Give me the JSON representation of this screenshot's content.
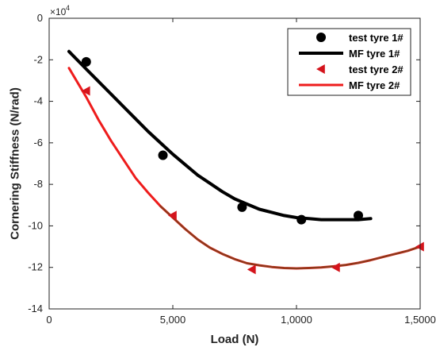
{
  "chart_data": {
    "type": "line",
    "xlabel": "Load (N)",
    "ylabel": "Cornering Stiffness (N/rad)",
    "xlim": [
      0,
      15000
    ],
    "ylim": [
      -14,
      0
    ],
    "y_multiplier_label": "×10",
    "y_multiplier_exponent": "4",
    "x_ticks": [
      0,
      5000,
      10000,
      15000
    ],
    "x_tick_labels": [
      "0",
      "5,000",
      "1,0000",
      "1,5000"
    ],
    "y_ticks": [
      0,
      -2,
      -4,
      -6,
      -8,
      -10,
      -12,
      -14
    ],
    "y_tick_labels": [
      "0",
      "-2",
      "-4",
      "-6",
      "-8",
      "-10",
      "-12",
      "-14"
    ],
    "grid": false,
    "legend_position": "top-right",
    "series": [
      {
        "name": "test tyre 1#",
        "kind": "scatter",
        "marker": "circle",
        "color": "#000000",
        "x": [
          1500,
          4600,
          7800,
          10200,
          12500
        ],
        "y": [
          -2.1,
          -6.6,
          -9.1,
          -9.7,
          -9.5
        ]
      },
      {
        "name": "MF tyre 1#",
        "kind": "line",
        "color": "#000000",
        "x": [
          800,
          1500,
          2000,
          2500,
          3000,
          3500,
          4000,
          4500,
          5000,
          5500,
          6000,
          6500,
          7000,
          7500,
          8000,
          8500,
          9000,
          9500,
          10000,
          10500,
          11000,
          11500,
          12000,
          12500,
          13000
        ],
        "y": [
          -1.6,
          -2.45,
          -3.05,
          -3.65,
          -4.25,
          -4.85,
          -5.45,
          -6.0,
          -6.55,
          -7.05,
          -7.55,
          -7.95,
          -8.35,
          -8.7,
          -8.95,
          -9.2,
          -9.35,
          -9.5,
          -9.6,
          -9.65,
          -9.7,
          -9.7,
          -9.7,
          -9.7,
          -9.65
        ]
      },
      {
        "name": "test tyre 2#",
        "kind": "scatter",
        "marker": "triangle-left",
        "color": "#d4141c",
        "x": [
          1500,
          5000,
          8200,
          11600,
          15000
        ],
        "y": [
          -3.5,
          -9.5,
          -12.1,
          -12.0,
          -11.0
        ]
      },
      {
        "name": "MF tyre 2#",
        "kind": "line",
        "color": "#ee1c1c",
        "x": [
          800,
          1500,
          2000,
          2500,
          3000,
          3500,
          4000,
          4500,
          5000,
          5500,
          6000,
          6500,
          7000,
          7500,
          8000,
          8500,
          9000,
          9500,
          10000,
          10500,
          11000,
          11500,
          12000,
          12500,
          13000,
          13500,
          14000,
          14500,
          15000
        ],
        "y": [
          -2.4,
          -3.8,
          -4.9,
          -5.9,
          -6.8,
          -7.7,
          -8.4,
          -9.05,
          -9.6,
          -10.15,
          -10.65,
          -11.05,
          -11.35,
          -11.6,
          -11.8,
          -11.9,
          -11.98,
          -12.03,
          -12.05,
          -12.03,
          -12.0,
          -11.95,
          -11.88,
          -11.78,
          -11.65,
          -11.5,
          -11.35,
          -11.2,
          -11.0
        ]
      }
    ],
    "overlay_color": "#8a3a1a"
  }
}
